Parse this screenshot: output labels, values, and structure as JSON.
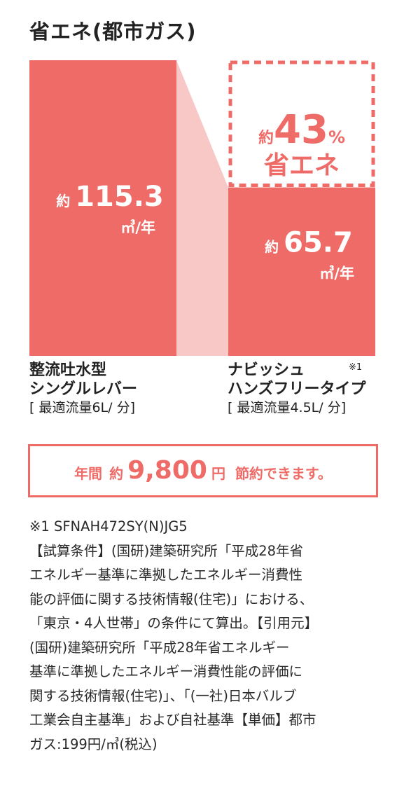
{
  "title": "省エネ(都市ガス)",
  "chart_data": {
    "type": "bar",
    "categories": [
      "整流吐水型シングルレバー",
      "ナビッシュハンズフリータイプ"
    ],
    "values": [
      115.3,
      65.7
    ],
    "value_prefix": "約",
    "unit": "㎥/年",
    "ylim": [
      0,
      115.3
    ],
    "annotation": {
      "prefix": "約",
      "value": "43",
      "percent": "%",
      "label": "省エネ"
    },
    "colors": {
      "bar": "#ef6b67",
      "connector": "#f8c8c7",
      "dashed": "#ef6b67",
      "text_on_bar": "#ffffff"
    }
  },
  "labels": {
    "left": {
      "line1": "整流吐水型",
      "line2": "シングルレバー",
      "spec": "[ 最適流量6L/ 分]"
    },
    "right": {
      "line1": "ナビッシュ",
      "line2": "ハンズフリータイプ",
      "spec": "[ 最適流量4.5L/ 分]",
      "mark": "※1"
    }
  },
  "savings": {
    "pre": "年間",
    "approx": "約",
    "amount": "9,800",
    "yen": "円",
    "post": "節約できます。"
  },
  "notes": [
    "※1 SFNAH472SY(N)JG5",
    "【試算条件】(国研)建築研究所「平成28年省",
    "エネルギー基準に準拠したエネルギー消費性",
    "能の評価に関する技術情報(住宅)」における、",
    "「東京・4人世帯」の条件にて算出。【引用元】",
    "(国研)建築研究所「平成28年省エネルギー",
    "基準に準拠したエネルギー消費性能の評価に",
    "関する技術情報(住宅)」、「(一社)日本バルブ",
    "工業会自主基準」および自社基準【単価】都市",
    "ガス:199円/㎥(税込)"
  ]
}
